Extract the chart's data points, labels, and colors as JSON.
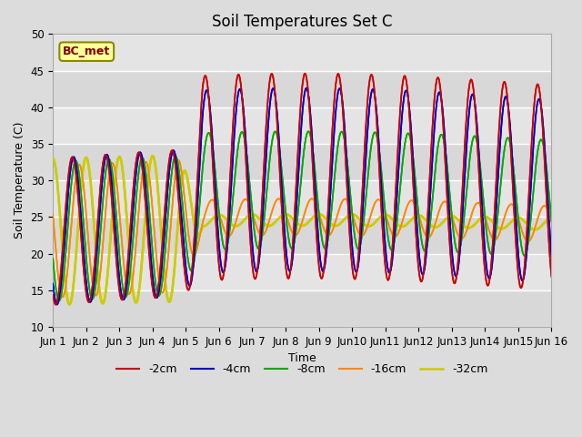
{
  "title": "Soil Temperatures Set C",
  "xlabel": "Time",
  "ylabel": "Soil Temperature (C)",
  "ylim": [
    10,
    50
  ],
  "xlim": [
    0,
    15
  ],
  "background_color": "#dcdcdc",
  "legend_labels": [
    "-2cm",
    "-4cm",
    "-8cm",
    "-16cm",
    "-32cm"
  ],
  "legend_colors": [
    "#cc0000",
    "#0000cc",
    "#00aa00",
    "#ff8800",
    "#cccc00"
  ],
  "annotation_text": "BC_met",
  "annotation_color": "#800000",
  "annotation_bg": "#ffff99",
  "annotation_border": "#888800",
  "xtick_labels": [
    "Jun 1",
    "Jun 2",
    "Jun 3",
    "Jun 4",
    "Jun 5",
    "Jun 6",
    "Jun 7",
    "Jun 8",
    "Jun 9",
    "Jun10",
    "Jun11",
    "Jun12",
    "Jun13",
    "Jun14",
    "Jun15",
    "Jun 16"
  ],
  "title_fontsize": 12,
  "axis_label_fontsize": 9,
  "tick_fontsize": 8.5
}
